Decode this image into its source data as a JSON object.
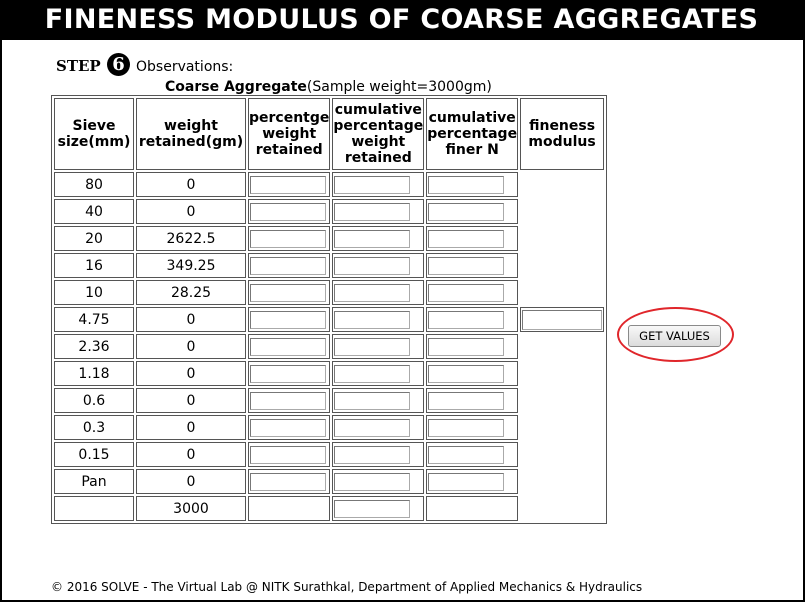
{
  "header": {
    "title": "FINENESS MODULUS OF COARSE AGGREGATES"
  },
  "step": {
    "label": "STEP",
    "number": "6",
    "observations": "Observations:"
  },
  "caption": {
    "bold": "Coarse Aggregate",
    "rest": "(Sample weight=3000gm)"
  },
  "table": {
    "headers": {
      "sieve": [
        "Sieve",
        "size(mm)"
      ],
      "weight": [
        "weight",
        "retained(gm)"
      ],
      "percent": [
        "percentge",
        "weight",
        "retained"
      ],
      "cumulative": [
        "cumulative",
        "percentage",
        "weight",
        "retained"
      ],
      "finer": [
        "cumulative",
        "percentage",
        "finer N"
      ],
      "fm": [
        "fineness",
        "modulus"
      ]
    },
    "rows": [
      {
        "sieve": "80",
        "weight": "0"
      },
      {
        "sieve": "40",
        "weight": "0"
      },
      {
        "sieve": "20",
        "weight": "2622.5"
      },
      {
        "sieve": "16",
        "weight": "349.25"
      },
      {
        "sieve": "10",
        "weight": "28.25"
      },
      {
        "sieve": "4.75",
        "weight": "0"
      },
      {
        "sieve": "2.36",
        "weight": "0"
      },
      {
        "sieve": "1.18",
        "weight": "0"
      },
      {
        "sieve": "0.6",
        "weight": "0"
      },
      {
        "sieve": "0.3",
        "weight": "0"
      },
      {
        "sieve": "0.15",
        "weight": "0"
      },
      {
        "sieve": "Pan",
        "weight": "0"
      }
    ],
    "total": {
      "sieve": "",
      "weight": "3000"
    }
  },
  "button": {
    "label": "GET VALUES"
  },
  "highlight_color": "#e0262b",
  "footer": {
    "text": "© 2016 SOLVE - The Virtual Lab @ NITK Surathkal, Department of Applied Mechanics & Hydraulics"
  }
}
